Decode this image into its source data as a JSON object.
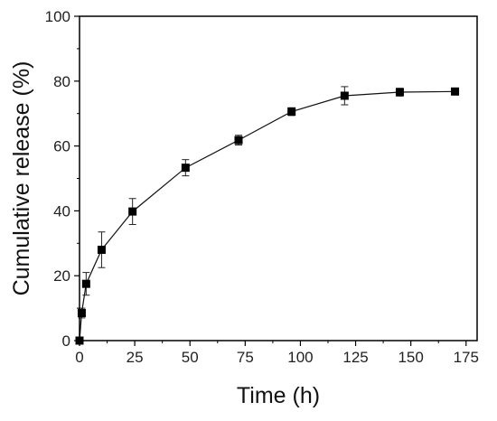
{
  "chart_data": {
    "type": "line",
    "xlabel": "Time (h)",
    "ylabel": "Cumulative release (%)",
    "xlim": [
      0,
      180
    ],
    "ylim": [
      0,
      100
    ],
    "xticks": [
      0,
      25,
      50,
      75,
      100,
      125,
      150,
      175
    ],
    "yticks": [
      0,
      20,
      40,
      60,
      80,
      100
    ],
    "grid": false,
    "marker": "square",
    "series": [
      {
        "x": [
          0,
          1,
          3,
          10,
          24,
          48,
          72,
          96,
          120,
          145,
          170
        ],
        "y": [
          0,
          8.5,
          17.5,
          28,
          39.8,
          53.3,
          61.8,
          70.6,
          75.5,
          76.6,
          76.8
        ],
        "error": [
          0,
          1.5,
          3.5,
          5.5,
          4,
          2.5,
          1.5,
          1.2,
          2.8,
          1.2,
          0
        ]
      }
    ]
  }
}
